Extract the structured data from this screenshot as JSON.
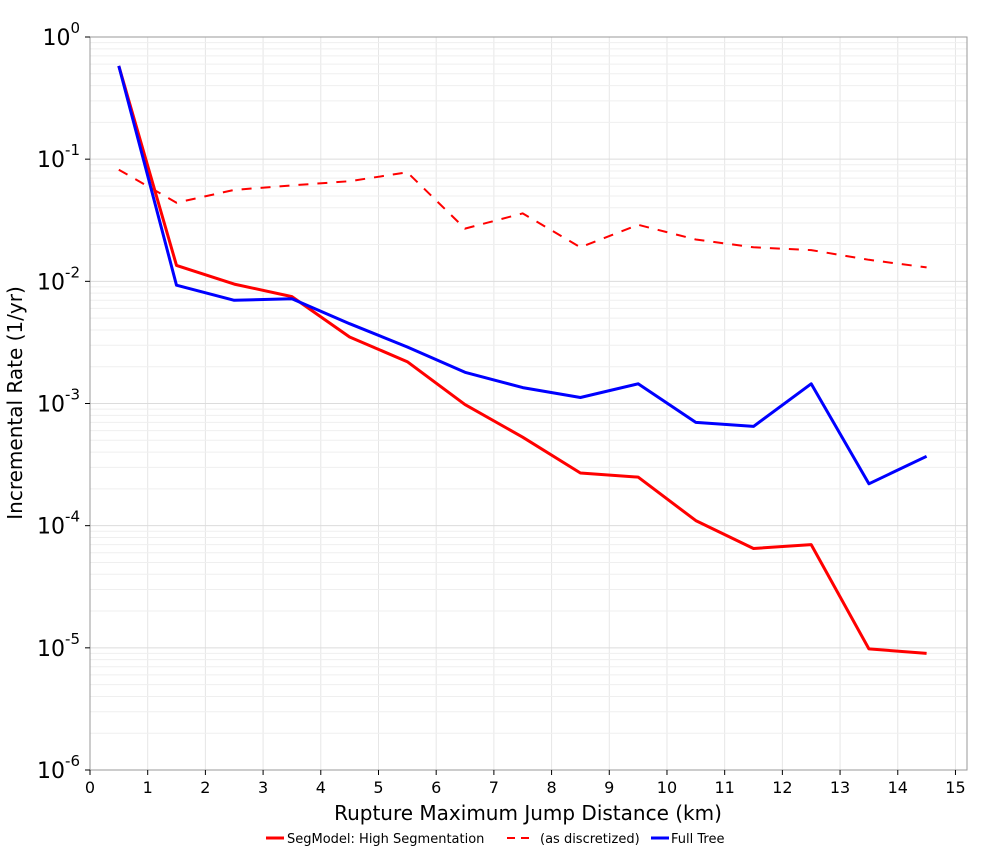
{
  "chart_data": {
    "type": "line",
    "xlabel": "Rupture Maximum Jump Distance (km)",
    "ylabel": "Incremental Rate (1/yr)",
    "xlim": [
      0,
      15.2
    ],
    "ylim_log10": [
      -6,
      0
    ],
    "yscale": "log",
    "grid": true,
    "legend_position": "bottom",
    "x_ticks": [
      0,
      1,
      2,
      3,
      4,
      5,
      6,
      7,
      8,
      9,
      10,
      11,
      12,
      13,
      14,
      15
    ],
    "y_ticks": [
      {
        "base": "10",
        "exp": "0"
      },
      {
        "base": "10",
        "exp": "-1"
      },
      {
        "base": "10",
        "exp": "-2"
      },
      {
        "base": "10",
        "exp": "-3"
      },
      {
        "base": "10",
        "exp": "-4"
      },
      {
        "base": "10",
        "exp": "-5"
      },
      {
        "base": "10",
        "exp": "-6"
      }
    ],
    "x": [
      0.5,
      1.5,
      2.5,
      3.5,
      4.5,
      5.5,
      6.5,
      7.5,
      8.5,
      9.5,
      10.5,
      11.5,
      12.5,
      13.5,
      14.5
    ],
    "series": [
      {
        "name": "SegModel: High Segmentation",
        "color": "#ff0000",
        "style": "solid",
        "values": [
          0.58,
          0.0135,
          0.0095,
          0.0075,
          0.0035,
          0.0022,
          0.00098,
          0.00053,
          0.00027,
          0.00025,
          0.00011,
          6.5e-05,
          7e-05,
          9.8e-06,
          9e-06
        ]
      },
      {
        "name": "(as discretized)",
        "color": "#ff0000",
        "style": "dashed",
        "values": [
          0.082,
          0.044,
          0.056,
          0.061,
          0.066,
          0.078,
          0.027,
          0.036,
          0.019,
          0.029,
          0.022,
          0.019,
          0.018,
          0.015,
          0.013
        ]
      },
      {
        "name": "Full Tree",
        "color": "#0000ff",
        "style": "solid",
        "values": [
          0.58,
          0.0093,
          0.007,
          0.0072,
          0.0045,
          0.0029,
          0.0018,
          0.00135,
          0.00112,
          0.00145,
          0.0007,
          0.00065,
          0.00145,
          0.00022,
          0.00037
        ]
      }
    ]
  }
}
